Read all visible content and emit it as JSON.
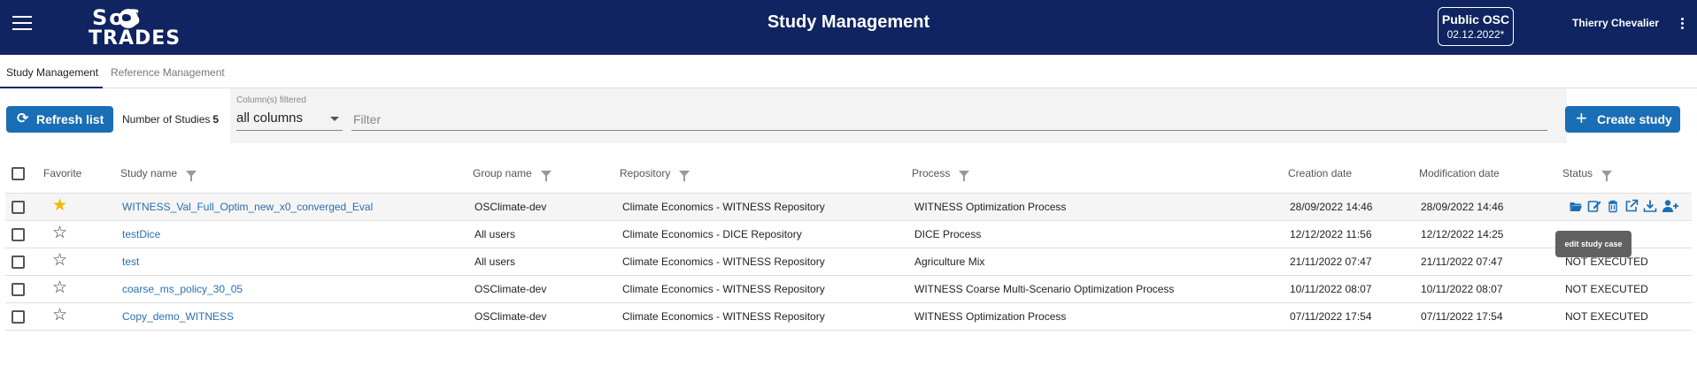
{
  "header": {
    "logo_top": "SoS",
    "logo_bottom": "TRADES",
    "title": "Study Management",
    "version_title": "Public OSC",
    "version_date": "02.12.2022*",
    "user": "Thierry Chevalier",
    "background_color": "#0f2460"
  },
  "tabs": [
    {
      "label": "Study Management",
      "active": true
    },
    {
      "label": "Reference Management",
      "active": false
    }
  ],
  "toolbar": {
    "refresh_label": "Refresh list",
    "studies_label": "Number of Studies",
    "studies_count": "5",
    "column_filter_label": "Column(s) filtered",
    "column_filter_value": "all columns",
    "filter_placeholder": "Filter",
    "create_label": "Create study",
    "accent_color": "#1a6eb5"
  },
  "columns": {
    "favorite": "Favorite",
    "study_name": "Study name",
    "group_name": "Group name",
    "repository": "Repository",
    "process": "Process",
    "creation_date": "Creation date",
    "modification_date": "Modification date",
    "status": "Status"
  },
  "rows": [
    {
      "favorite": true,
      "name": "WITNESS_Val_Full_Optim_new_x0_converged_Eval",
      "group": "OSClimate-dev",
      "repository": "Climate Economics - WITNESS Repository",
      "process": "WITNESS Optimization Process",
      "created": "28/09/2022 14:46",
      "modified": "28/09/2022 14:46",
      "status": ""
    },
    {
      "favorite": false,
      "name": "testDice",
      "group": "All users",
      "repository": "Climate Economics - DICE Repository",
      "process": "DICE Process",
      "created": "12/12/2022 11:56",
      "modified": "12/12/2022 14:25",
      "status": ""
    },
    {
      "favorite": false,
      "name": "test",
      "group": "All users",
      "repository": "Climate Economics - WITNESS Repository",
      "process": "Agriculture Mix",
      "created": "21/11/2022 07:47",
      "modified": "21/11/2022 07:47",
      "status": "NOT EXECUTED"
    },
    {
      "favorite": false,
      "name": "coarse_ms_policy_30_05",
      "group": "OSClimate-dev",
      "repository": "Climate Economics - WITNESS Repository",
      "process": "WITNESS Coarse Multi-Scenario Optimization Process",
      "created": "10/11/2022 08:07",
      "modified": "10/11/2022 08:07",
      "status": "NOT EXECUTED"
    },
    {
      "favorite": false,
      "name": "Copy_demo_WITNESS",
      "group": "OSClimate-dev",
      "repository": "Climate Economics - WITNESS Repository",
      "process": "WITNESS Optimization Process",
      "created": "07/11/2022 17:54",
      "modified": "07/11/2022 17:54",
      "status": "NOT EXECUTED"
    }
  ],
  "row_actions": [
    "open-folder-icon",
    "edit-icon",
    "delete-icon",
    "open-external-icon",
    "download-icon",
    "add-user-icon"
  ],
  "tooltip": "edit study case"
}
